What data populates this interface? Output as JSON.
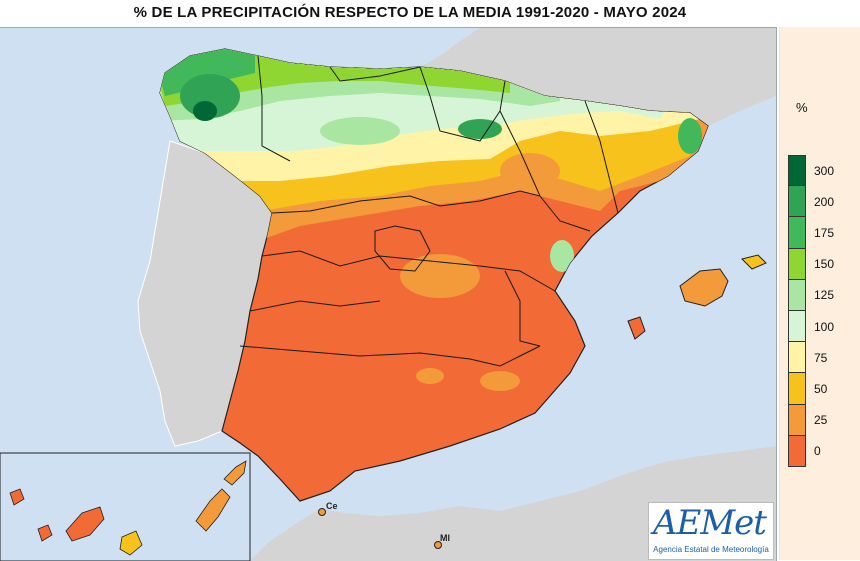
{
  "title": "% DE LA PRECIPITACIÓN RESPECTO DE LA MEDIA 1991-2020 - MAYO 2024",
  "legend": {
    "unit": "%",
    "bins": [
      {
        "label": "300",
        "color": "#006837"
      },
      {
        "label": "200",
        "color": "#31a354"
      },
      {
        "label": "175",
        "color": "#41b85a"
      },
      {
        "label": "150",
        "color": "#8fd633"
      },
      {
        "label": "125",
        "color": "#a8e6a1"
      },
      {
        "label": "100",
        "color": "#d6f5d6"
      },
      {
        "label": "75",
        "color": "#fff3a8"
      },
      {
        "label": "50",
        "color": "#f7c21b"
      },
      {
        "label": "25",
        "color": "#f39a3a"
      },
      {
        "label": "0",
        "color": "#f26a35"
      }
    ]
  },
  "cities": {
    "ceuta": "Ce",
    "melilla": "Ml"
  },
  "logo": {
    "name": "AEMet",
    "subtitle": "Agencia Estatal de Meteorología"
  },
  "colors": {
    "sea": "#cfe0f3",
    "foreign_land": "#d4d4d4",
    "region_border": "#1a1a1a"
  }
}
